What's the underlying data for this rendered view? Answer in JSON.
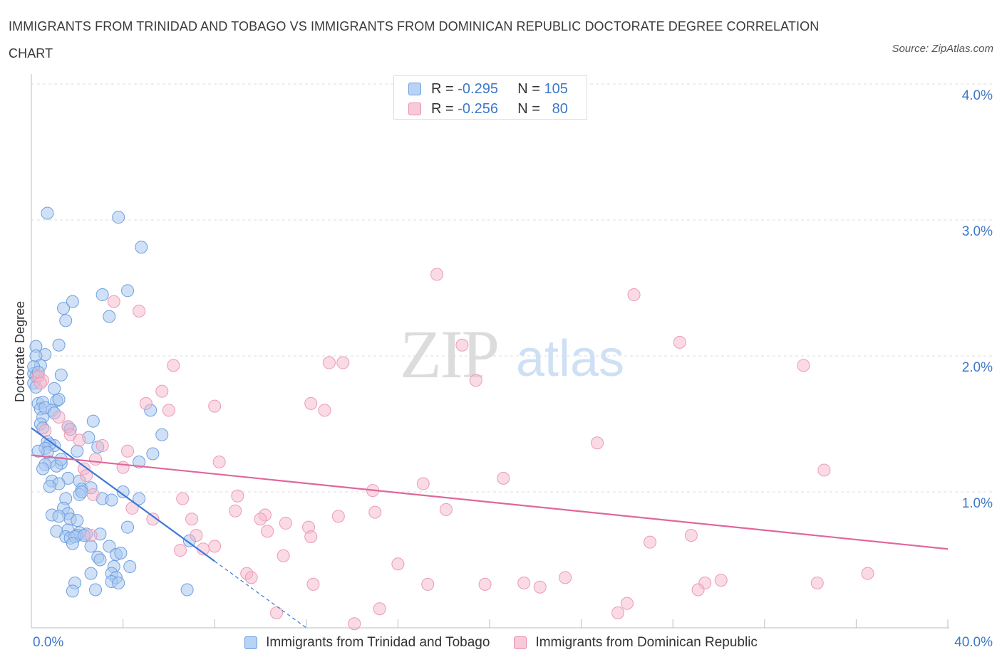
{
  "header": {
    "title": "IMMIGRANTS FROM TRINIDAD AND TOBAGO VS IMMIGRANTS FROM DOMINICAN REPUBLIC DOCTORATE DEGREE CORRELATION CHART",
    "source": "Source: ZipAtlas.com"
  },
  "colors": {
    "blue": "#a9c8f0",
    "blue_line": "#3c78d8",
    "pink": "#f5b8cb",
    "pink_line": "#e0679a",
    "axis_text": "#3b78c8"
  },
  "stats": {
    "rows": [
      {
        "r_label": "R =",
        "r_value": "-0.295",
        "n_label": "N =",
        "n_value": "105"
      },
      {
        "r_label": "R =",
        "r_value": "-0.256",
        "n_label": "N =",
        "n_value": "80"
      }
    ]
  },
  "legend": {
    "series1": "Immigrants from Trinidad and Tobago",
    "series2": "Immigrants from Dominican Republic"
  },
  "chart_data": {
    "type": "scatter",
    "title": "IMMIGRANTS FROM TRINIDAD AND TOBAGO VS IMMIGRANTS FROM DOMINICAN REPUBLIC DOCTORATE DEGREE CORRELATION CHART",
    "xlabel": "",
    "ylabel": "Doctorate Degree",
    "xlim": [
      0,
      40
    ],
    "ylim": [
      0,
      4.0
    ],
    "x_tick_labels": [
      "0.0%",
      "40.0%"
    ],
    "y_ticks": [
      1.0,
      2.0,
      3.0,
      4.0
    ],
    "y_tick_labels": [
      "1.0%",
      "2.0%",
      "3.0%",
      "4.0%"
    ],
    "watermark": "ZIPatlas",
    "series": [
      {
        "name": "Immigrants from Trinidad and Tobago",
        "R": -0.295,
        "N": 105,
        "trend": {
          "x": [
            0.0,
            8.0
          ],
          "y": [
            1.47,
            0.49
          ],
          "dashed_to": [
            12.0,
            0.0
          ]
        },
        "points": [
          [
            0.7,
            3.05
          ],
          [
            3.8,
            3.02
          ],
          [
            4.8,
            2.8
          ],
          [
            3.1,
            2.45
          ],
          [
            4.2,
            2.48
          ],
          [
            1.4,
            2.35
          ],
          [
            1.8,
            2.4
          ],
          [
            1.5,
            2.26
          ],
          [
            3.4,
            2.29
          ],
          [
            0.2,
            2.07
          ],
          [
            1.2,
            2.08
          ],
          [
            0.6,
            2.01
          ],
          [
            0.2,
            2.0
          ],
          [
            0.4,
            1.93
          ],
          [
            0.1,
            1.87
          ],
          [
            0.2,
            1.85
          ],
          [
            1.3,
            1.86
          ],
          [
            0.1,
            1.8
          ],
          [
            0.2,
            1.77
          ],
          [
            1.0,
            1.76
          ],
          [
            0.3,
            1.65
          ],
          [
            0.5,
            1.66
          ],
          [
            1.1,
            1.67
          ],
          [
            1.2,
            1.68
          ],
          [
            0.9,
            1.6
          ],
          [
            0.4,
            1.61
          ],
          [
            5.2,
            1.6
          ],
          [
            0.5,
            1.55
          ],
          [
            0.4,
            1.5
          ],
          [
            2.7,
            1.52
          ],
          [
            0.5,
            1.47
          ],
          [
            1.6,
            1.48
          ],
          [
            1.7,
            1.46
          ],
          [
            5.7,
            1.42
          ],
          [
            2.5,
            1.4
          ],
          [
            0.7,
            1.37
          ],
          [
            1.0,
            1.34
          ],
          [
            0.8,
            1.35
          ],
          [
            0.6,
            1.32
          ],
          [
            0.7,
            1.29
          ],
          [
            0.3,
            1.3
          ],
          [
            2.9,
            1.33
          ],
          [
            2.0,
            1.3
          ],
          [
            5.3,
            1.28
          ],
          [
            1.3,
            1.21
          ],
          [
            0.8,
            1.22
          ],
          [
            1.1,
            1.19
          ],
          [
            0.6,
            1.2
          ],
          [
            0.5,
            1.17
          ],
          [
            4.7,
            1.22
          ],
          [
            1.6,
            1.1
          ],
          [
            0.9,
            1.08
          ],
          [
            2.1,
            1.08
          ],
          [
            1.2,
            1.06
          ],
          [
            0.8,
            1.04
          ],
          [
            2.2,
            1.02
          ],
          [
            2.6,
            1.03
          ],
          [
            2.1,
            0.98
          ],
          [
            4.0,
            1.0
          ],
          [
            3.1,
            0.95
          ],
          [
            3.5,
            0.94
          ],
          [
            4.7,
            0.95
          ],
          [
            1.5,
            0.95
          ],
          [
            1.4,
            0.88
          ],
          [
            0.9,
            0.83
          ],
          [
            1.6,
            0.84
          ],
          [
            1.2,
            0.82
          ],
          [
            1.7,
            0.8
          ],
          [
            2.0,
            0.79
          ],
          [
            4.2,
            0.74
          ],
          [
            1.1,
            0.71
          ],
          [
            1.6,
            0.72
          ],
          [
            2.1,
            0.7
          ],
          [
            2.4,
            0.69
          ],
          [
            2.0,
            0.68
          ],
          [
            3.0,
            0.69
          ],
          [
            1.5,
            0.67
          ],
          [
            1.7,
            0.66
          ],
          [
            1.9,
            0.67
          ],
          [
            2.3,
            0.68
          ],
          [
            6.9,
            0.64
          ],
          [
            3.4,
            0.6
          ],
          [
            2.6,
            0.6
          ],
          [
            1.8,
            0.62
          ],
          [
            3.7,
            0.54
          ],
          [
            3.9,
            0.55
          ],
          [
            2.9,
            0.52
          ],
          [
            3.0,
            0.5
          ],
          [
            3.6,
            0.45
          ],
          [
            4.3,
            0.45
          ],
          [
            2.6,
            0.4
          ],
          [
            3.5,
            0.4
          ],
          [
            3.7,
            0.37
          ],
          [
            3.5,
            0.34
          ],
          [
            3.8,
            0.33
          ],
          [
            1.9,
            0.33
          ],
          [
            2.8,
            0.28
          ],
          [
            1.8,
            0.27
          ],
          [
            6.8,
            0.28
          ],
          [
            0.1,
            1.92
          ],
          [
            0.3,
            1.88
          ],
          [
            0.6,
            1.62
          ],
          [
            1.0,
            1.58
          ],
          [
            1.3,
            1.24
          ],
          [
            2.2,
            1.0
          ]
        ]
      },
      {
        "name": "Immigrants from Dominican Republic",
        "R": -0.256,
        "N": 80,
        "trend": {
          "x": [
            0.0,
            40.0
          ],
          "y": [
            1.27,
            0.58
          ]
        },
        "points": [
          [
            17.7,
            2.6
          ],
          [
            26.3,
            2.45
          ],
          [
            3.6,
            2.4
          ],
          [
            4.7,
            2.33
          ],
          [
            28.3,
            2.1
          ],
          [
            18.8,
            2.08
          ],
          [
            6.2,
            1.93
          ],
          [
            13.0,
            1.95
          ],
          [
            13.6,
            1.95
          ],
          [
            33.7,
            1.93
          ],
          [
            0.5,
            1.82
          ],
          [
            0.3,
            1.85
          ],
          [
            19.4,
            1.82
          ],
          [
            5.7,
            1.74
          ],
          [
            5.0,
            1.65
          ],
          [
            12.2,
            1.65
          ],
          [
            8.0,
            1.63
          ],
          [
            6.0,
            1.6
          ],
          [
            12.8,
            1.6
          ],
          [
            1.6,
            1.48
          ],
          [
            0.6,
            1.45
          ],
          [
            1.7,
            1.42
          ],
          [
            2.1,
            1.38
          ],
          [
            3.1,
            1.34
          ],
          [
            24.7,
            1.36
          ],
          [
            4.2,
            1.3
          ],
          [
            2.8,
            1.24
          ],
          [
            8.2,
            1.22
          ],
          [
            4.0,
            1.18
          ],
          [
            2.3,
            1.17
          ],
          [
            34.6,
            1.16
          ],
          [
            20.6,
            1.1
          ],
          [
            17.1,
            1.06
          ],
          [
            14.9,
            1.01
          ],
          [
            9.0,
            0.97
          ],
          [
            6.6,
            0.95
          ],
          [
            2.7,
            0.98
          ],
          [
            4.4,
            0.88
          ],
          [
            18.1,
            0.87
          ],
          [
            8.9,
            0.86
          ],
          [
            15.0,
            0.85
          ],
          [
            10.2,
            0.83
          ],
          [
            13.4,
            0.82
          ],
          [
            5.3,
            0.8
          ],
          [
            7.0,
            0.8
          ],
          [
            10.0,
            0.8
          ],
          [
            11.1,
            0.77
          ],
          [
            12.1,
            0.74
          ],
          [
            10.3,
            0.71
          ],
          [
            2.6,
            0.68
          ],
          [
            7.2,
            0.68
          ],
          [
            12.2,
            0.67
          ],
          [
            28.8,
            0.68
          ],
          [
            27.0,
            0.63
          ],
          [
            8.0,
            0.6
          ],
          [
            7.5,
            0.58
          ],
          [
            6.5,
            0.57
          ],
          [
            11.0,
            0.53
          ],
          [
            16.0,
            0.47
          ],
          [
            9.4,
            0.4
          ],
          [
            36.5,
            0.4
          ],
          [
            9.6,
            0.37
          ],
          [
            23.3,
            0.37
          ],
          [
            30.1,
            0.35
          ],
          [
            21.5,
            0.33
          ],
          [
            29.4,
            0.33
          ],
          [
            34.3,
            0.33
          ],
          [
            12.3,
            0.32
          ],
          [
            17.3,
            0.32
          ],
          [
            19.8,
            0.32
          ],
          [
            22.2,
            0.3
          ],
          [
            29.1,
            0.28
          ],
          [
            26.0,
            0.18
          ],
          [
            15.2,
            0.14
          ],
          [
            25.6,
            0.11
          ],
          [
            10.7,
            0.11
          ],
          [
            14.1,
            0.03
          ],
          [
            0.4,
            1.8
          ],
          [
            1.2,
            1.55
          ],
          [
            2.4,
            1.12
          ]
        ]
      }
    ]
  }
}
